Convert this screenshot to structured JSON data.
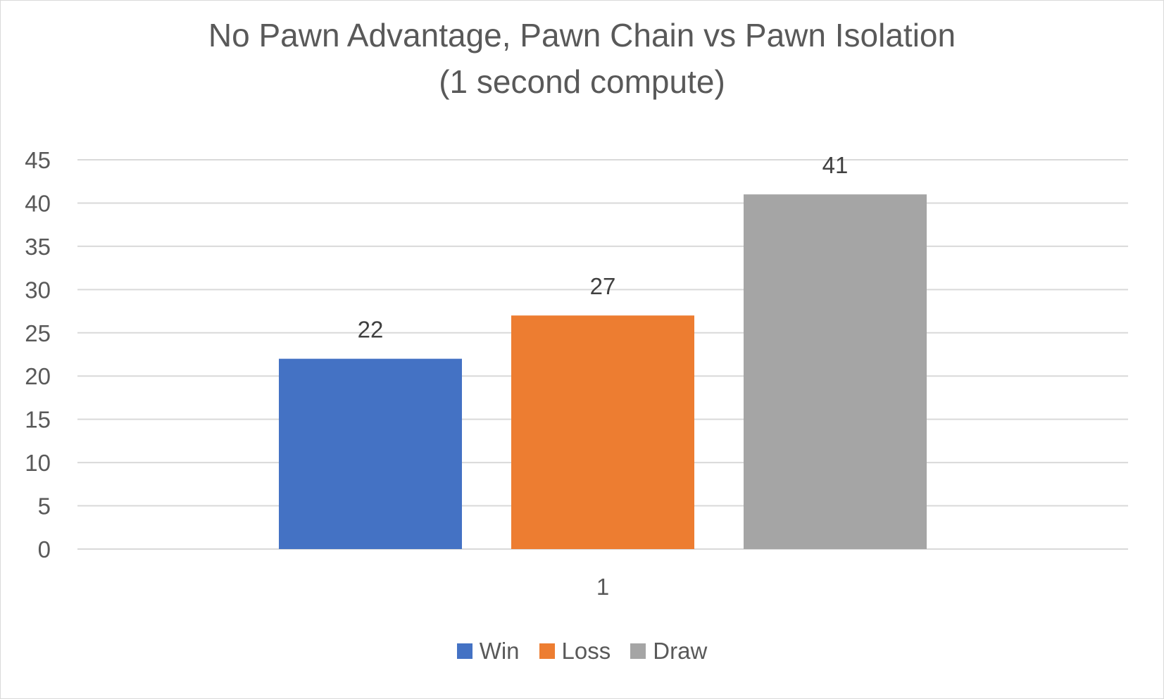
{
  "chart_data": {
    "type": "bar",
    "title": "No Pawn Advantage, Pawn Chain vs Pawn Isolation",
    "subtitle": "(1 second compute)",
    "categories": [
      "1"
    ],
    "series": [
      {
        "name": "Win",
        "values": [
          22
        ],
        "color": "#4472c4"
      },
      {
        "name": "Loss",
        "values": [
          27
        ],
        "color": "#ed7d31"
      },
      {
        "name": "Draw",
        "values": [
          41
        ],
        "color": "#a5a5a5"
      }
    ],
    "ylim": [
      0,
      45
    ],
    "yticks": [
      "0",
      "5",
      "10",
      "15",
      "20",
      "25",
      "30",
      "35",
      "40",
      "45"
    ],
    "grid": true,
    "legend": "bottom",
    "xlabel": "",
    "ylabel": ""
  }
}
